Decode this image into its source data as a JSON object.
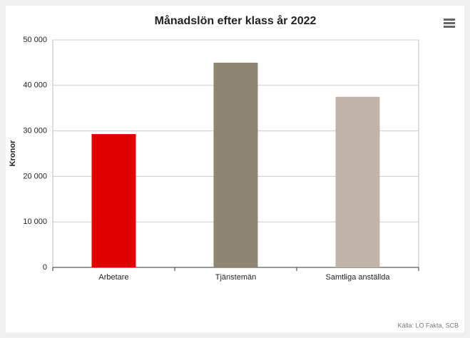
{
  "chart_data": {
    "type": "bar",
    "title": "Månadslön efter klass år 2022",
    "ylabel": "Kronor",
    "categories": [
      "Arbetare",
      "Tjänstemän",
      "Samtliga anställda"
    ],
    "values": [
      29300,
      45000,
      37500
    ],
    "colors": [
      "#e10000",
      "#8f8672",
      "#c0b5a8"
    ],
    "ylim": [
      0,
      50000
    ],
    "yticks": [
      0,
      {
        "value": 10000,
        "label": "10 000"
      },
      {
        "value": 20000,
        "label": "20 000"
      },
      {
        "value": 30000,
        "label": "30 000"
      },
      {
        "value": 40000,
        "label": "40 000"
      },
      {
        "value": 50000,
        "label": "50 000"
      }
    ],
    "grid": true,
    "source": "Källa: LO Fakta, SCB"
  }
}
